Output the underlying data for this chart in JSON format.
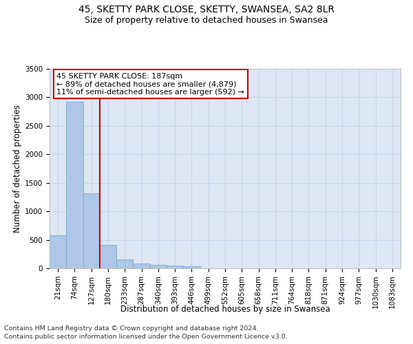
{
  "title1": "45, SKETTY PARK CLOSE, SKETTY, SWANSEA, SA2 8LR",
  "title2": "Size of property relative to detached houses in Swansea",
  "xlabel": "Distribution of detached houses by size in Swansea",
  "ylabel": "Number of detached properties",
  "footnote1": "Contains HM Land Registry data © Crown copyright and database right 2024.",
  "footnote2": "Contains public sector information licensed under the Open Government Licence v3.0.",
  "bar_labels": [
    "21sqm",
    "74sqm",
    "127sqm",
    "180sqm",
    "233sqm",
    "287sqm",
    "340sqm",
    "393sqm",
    "446sqm",
    "499sqm",
    "552sqm",
    "605sqm",
    "658sqm",
    "711sqm",
    "764sqm",
    "818sqm",
    "871sqm",
    "924sqm",
    "977sqm",
    "1030sqm",
    "1083sqm"
  ],
  "bar_values": [
    575,
    2920,
    1320,
    410,
    155,
    80,
    58,
    52,
    40,
    0,
    0,
    0,
    0,
    0,
    0,
    0,
    0,
    0,
    0,
    0,
    0
  ],
  "bar_color": "#aec6e8",
  "bar_edge_color": "#7aaad0",
  "annotation_text": "45 SKETTY PARK CLOSE: 187sqm\n← 89% of detached houses are smaller (4,879)\n11% of semi-detached houses are larger (592) →",
  "vline_color": "#cc0000",
  "annotation_box_color": "#ffffff",
  "annotation_box_edge": "#cc0000",
  "ylim": [
    0,
    3500
  ],
  "yticks": [
    0,
    500,
    1000,
    1500,
    2000,
    2500,
    3000,
    3500
  ],
  "grid_color": "#c8d4e8",
  "background_color": "#dde6f2",
  "title1_fontsize": 10,
  "title2_fontsize": 9,
  "xlabel_fontsize": 8.5,
  "ylabel_fontsize": 8.5,
  "tick_fontsize": 7.5,
  "footnote_fontsize": 6.8,
  "annotation_fontsize": 8
}
